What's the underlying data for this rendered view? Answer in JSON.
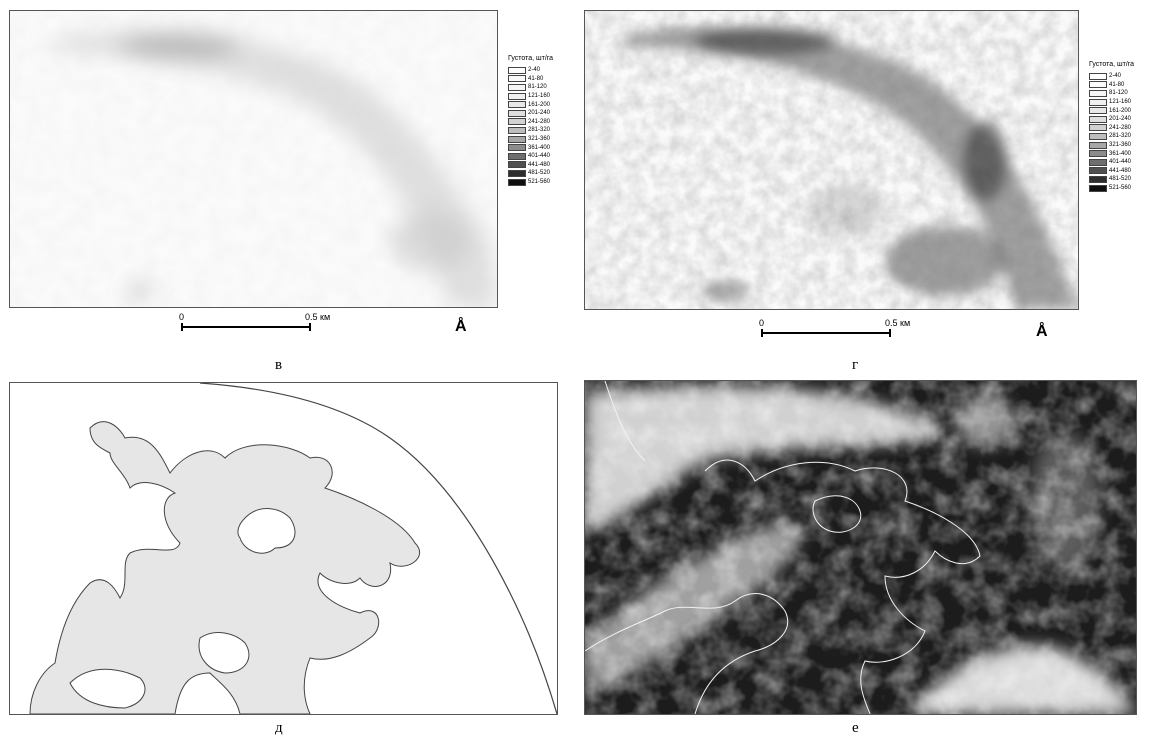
{
  "panels": {
    "v": {
      "caption": "в"
    },
    "g": {
      "caption": "г"
    },
    "d": {
      "caption": "д"
    },
    "e": {
      "caption": "е"
    }
  },
  "legend": {
    "title": "Густота, шт/га",
    "classes": [
      {
        "label": "2-40",
        "color": "#ffffff"
      },
      {
        "label": "41-80",
        "color": "#fbfbfb"
      },
      {
        "label": "81-120",
        "color": "#f6f6f6"
      },
      {
        "label": "121-160",
        "color": "#f0f0f0"
      },
      {
        "label": "161-200",
        "color": "#e8e8e8"
      },
      {
        "label": "201-240",
        "color": "#dfdfdf"
      },
      {
        "label": "241-280",
        "color": "#d2d2d2"
      },
      {
        "label": "281-320",
        "color": "#bdbdbd"
      },
      {
        "label": "321-360",
        "color": "#a7a7a7"
      },
      {
        "label": "361-400",
        "color": "#8c8c8c"
      },
      {
        "label": "401-440",
        "color": "#6e6e6e"
      },
      {
        "label": "441-480",
        "color": "#505050"
      },
      {
        "label": "481-520",
        "color": "#2e2e2e"
      },
      {
        "label": "521-560",
        "color": "#0e0e0e"
      }
    ]
  },
  "scalebar": {
    "zero": "0",
    "distance": "0.5 км"
  },
  "north_arrow": "Å",
  "colors": {
    "zone_fill": "#e6e6e6",
    "zone_stroke": "#444444",
    "overlay_line": "#f2f2f2"
  }
}
